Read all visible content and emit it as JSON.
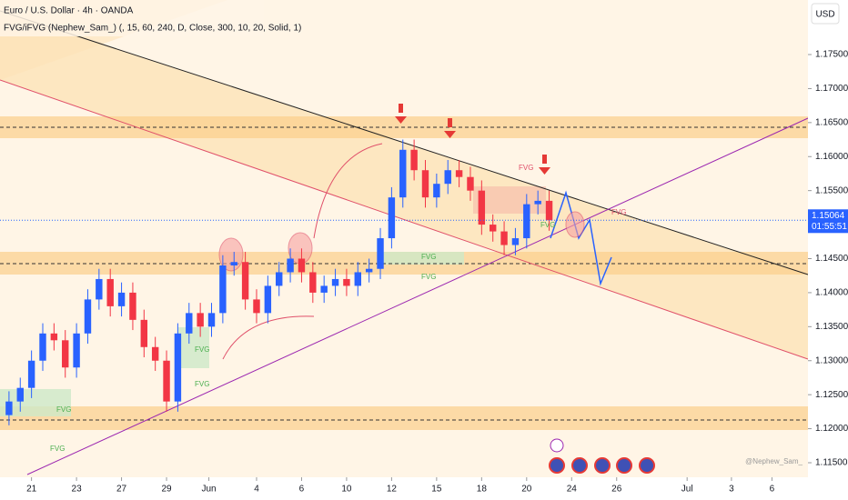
{
  "chart_data": {
    "type": "candlestick",
    "title": "Euro / U.S. Dollar · 4h · OANDA",
    "subtitle": "FVG/iFVG (Nephew_Sam_) (, 15, 60, 240, D, Close, 300, 10, 20, Solid, 1)",
    "currency": "USD",
    "countdown": "01:55:51",
    "watermark": "@Nephew_Sam_",
    "annotations": [
      "FVG",
      "FVG",
      "FVG",
      "FVG",
      "FVG",
      "FVG",
      "FVG",
      "FVG",
      "FVG"
    ],
    "x": [
      -1,
      -0.5,
      0,
      0.5,
      1,
      1.5,
      2,
      2.5,
      3,
      3.5,
      4,
      4.5,
      5,
      5.5,
      6,
      6.5,
      7,
      7.5,
      8,
      8.5,
      9,
      9.5,
      10,
      10.5,
      11,
      11.5,
      12,
      12.5,
      13,
      13.5,
      14,
      14.5,
      15,
      15.5,
      16,
      16.5,
      17,
      17.5,
      18,
      18.5,
      19,
      19.5,
      20,
      20.5,
      21,
      21.5,
      22,
      22.5,
      23
    ],
    "open": [
      1.122,
      1.124,
      1.126,
      1.13,
      1.134,
      1.133,
      1.129,
      1.134,
      1.139,
      1.142,
      1.138,
      1.14,
      1.136,
      1.132,
      1.13,
      1.124,
      1.134,
      1.137,
      1.135,
      1.137,
      1.144,
      1.1445,
      1.139,
      1.137,
      1.141,
      1.143,
      1.145,
      1.143,
      1.14,
      1.141,
      1.142,
      1.141,
      1.143,
      1.1435,
      1.148,
      1.154,
      1.161,
      1.158,
      1.154,
      1.156,
      1.158,
      1.157,
      1.155,
      1.15,
      1.149,
      1.147,
      1.148,
      1.153,
      1.1535
    ],
    "high": [
      1.1255,
      1.1275,
      1.1315,
      1.1355,
      1.1355,
      1.1345,
      1.1355,
      1.1405,
      1.1435,
      1.1435,
      1.1415,
      1.1415,
      1.1375,
      1.1335,
      1.1315,
      1.1355,
      1.1385,
      1.1385,
      1.1385,
      1.1455,
      1.146,
      1.146,
      1.1405,
      1.1425,
      1.1445,
      1.1465,
      1.1465,
      1.1445,
      1.1425,
      1.1435,
      1.1435,
      1.1445,
      1.145,
      1.1495,
      1.1555,
      1.1625,
      1.1625,
      1.1595,
      1.1575,
      1.1595,
      1.1595,
      1.1585,
      1.1565,
      1.1515,
      1.1505,
      1.1495,
      1.1545,
      1.155,
      1.155
    ],
    "low": [
      1.1205,
      1.1225,
      1.1245,
      1.1285,
      1.1315,
      1.1275,
      1.1275,
      1.1325,
      1.1375,
      1.1365,
      1.1365,
      1.1345,
      1.1305,
      1.1285,
      1.1225,
      1.1225,
      1.1325,
      1.1335,
      1.1335,
      1.1355,
      1.1425,
      1.1375,
      1.1355,
      1.1355,
      1.1395,
      1.1415,
      1.1415,
      1.1385,
      1.1385,
      1.1395,
      1.1395,
      1.1395,
      1.1415,
      1.142,
      1.1465,
      1.1525,
      1.1565,
      1.1525,
      1.1525,
      1.1545,
      1.1555,
      1.1535,
      1.1485,
      1.1475,
      1.1455,
      1.1455,
      1.1465,
      1.1515,
      1.1491
    ],
    "close": [
      1.124,
      1.126,
      1.13,
      1.134,
      1.133,
      1.129,
      1.134,
      1.139,
      1.142,
      1.138,
      1.14,
      1.136,
      1.132,
      1.13,
      1.124,
      1.134,
      1.137,
      1.135,
      1.137,
      1.144,
      1.1445,
      1.139,
      1.137,
      1.141,
      1.143,
      1.145,
      1.143,
      1.14,
      1.141,
      1.142,
      1.141,
      1.143,
      1.1435,
      1.148,
      1.154,
      1.161,
      1.158,
      1.154,
      1.156,
      1.158,
      1.157,
      1.155,
      1.15,
      1.149,
      1.147,
      1.148,
      1.153,
      1.1535,
      1.15064
    ],
    "up_color": "#2962ff",
    "down_color": "#f23645",
    "xlim": [
      -1.4,
      34.5
    ],
    "xticks": [
      {
        "value": 0,
        "label": "21"
      },
      {
        "value": 2,
        "label": "23"
      },
      {
        "value": 4,
        "label": "27"
      },
      {
        "value": 6,
        "label": "29"
      },
      {
        "value": 7.88,
        "label": "Jun"
      },
      {
        "value": 10,
        "label": "4"
      },
      {
        "value": 12,
        "label": "6"
      },
      {
        "value": 14,
        "label": "10"
      },
      {
        "value": 16,
        "label": "12"
      },
      {
        "value": 18,
        "label": "15"
      },
      {
        "value": 20,
        "label": "18"
      },
      {
        "value": 22,
        "label": "20"
      },
      {
        "value": 24,
        "label": "24"
      },
      {
        "value": 26,
        "label": "26"
      },
      {
        "value": 29.13,
        "label": "Jul"
      },
      {
        "value": 31.1,
        "label": "3"
      },
      {
        "value": 32.9,
        "label": "6"
      }
    ],
    "ylim": [
      1.11286,
      1.18302
    ],
    "yticks": [
      {
        "value": 1.175,
        "label": "1.17500"
      },
      {
        "value": 1.17,
        "label": "1.17000"
      },
      {
        "value": 1.165,
        "label": "1.16500"
      },
      {
        "value": 1.16,
        "label": "1.16000"
      },
      {
        "value": 1.155,
        "label": "1.15500"
      },
      {
        "value": 1.145,
        "label": "1.14500"
      },
      {
        "value": 1.14,
        "label": "1.14000"
      },
      {
        "value": 1.135,
        "label": "1.13500"
      },
      {
        "value": 1.13,
        "label": "1.13000"
      },
      {
        "value": 1.125,
        "label": "1.12500"
      },
      {
        "value": 1.12,
        "label": "1.12000"
      },
      {
        "value": 1.115,
        "label": "1.11500"
      }
    ]
  }
}
